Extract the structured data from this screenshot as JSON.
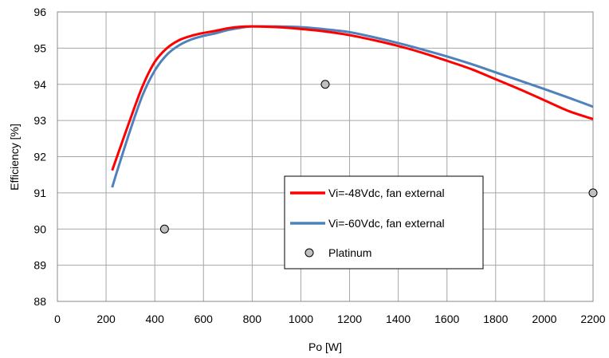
{
  "chart_data": {
    "type": "line",
    "title": "",
    "xlabel": "Po [W]",
    "ylabel": "Efficiency [%]",
    "xlim": [
      0,
      2200
    ],
    "ylim": [
      88,
      96
    ],
    "x_ticks": [
      0,
      200,
      400,
      600,
      800,
      1000,
      1200,
      1400,
      1600,
      1800,
      2000,
      2200
    ],
    "y_ticks": [
      88,
      89,
      90,
      91,
      92,
      93,
      94,
      95,
      96
    ],
    "grid": true,
    "legend_position": "lower-right",
    "series": [
      {
        "name": "Vi=-48Vdc, fan external",
        "type": "line",
        "color": "#ff0000",
        "points": [
          [
            225,
            91.62
          ],
          [
            250,
            92.1
          ],
          [
            300,
            93.05
          ],
          [
            350,
            93.95
          ],
          [
            400,
            94.62
          ],
          [
            450,
            95.0
          ],
          [
            500,
            95.22
          ],
          [
            550,
            95.34
          ],
          [
            600,
            95.42
          ],
          [
            650,
            95.48
          ],
          [
            700,
            95.55
          ],
          [
            750,
            95.59
          ],
          [
            800,
            95.6
          ],
          [
            900,
            95.58
          ],
          [
            1000,
            95.53
          ],
          [
            1100,
            95.46
          ],
          [
            1200,
            95.36
          ],
          [
            1300,
            95.22
          ],
          [
            1400,
            95.06
          ],
          [
            1500,
            94.87
          ],
          [
            1600,
            94.65
          ],
          [
            1700,
            94.42
          ],
          [
            1800,
            94.14
          ],
          [
            1900,
            93.86
          ],
          [
            2000,
            93.56
          ],
          [
            2100,
            93.26
          ],
          [
            2200,
            93.04
          ]
        ]
      },
      {
        "name": "Vi=-60Vdc, fan external",
        "type": "line",
        "color": "#4f81bd",
        "points": [
          [
            225,
            91.15
          ],
          [
            250,
            91.7
          ],
          [
            300,
            92.75
          ],
          [
            350,
            93.7
          ],
          [
            400,
            94.38
          ],
          [
            450,
            94.82
          ],
          [
            500,
            95.08
          ],
          [
            550,
            95.24
          ],
          [
            600,
            95.34
          ],
          [
            650,
            95.41
          ],
          [
            700,
            95.5
          ],
          [
            750,
            95.56
          ],
          [
            800,
            95.6
          ],
          [
            900,
            95.6
          ],
          [
            1000,
            95.58
          ],
          [
            1100,
            95.52
          ],
          [
            1200,
            95.44
          ],
          [
            1300,
            95.3
          ],
          [
            1400,
            95.14
          ],
          [
            1500,
            94.96
          ],
          [
            1600,
            94.77
          ],
          [
            1700,
            94.56
          ],
          [
            1800,
            94.33
          ],
          [
            1900,
            94.1
          ],
          [
            2000,
            93.87
          ],
          [
            2100,
            93.63
          ],
          [
            2200,
            93.38
          ]
        ]
      },
      {
        "name": "Platinum",
        "type": "scatter",
        "color": "#c0c0c0",
        "points": [
          [
            440,
            90.0
          ],
          [
            1100,
            94.0
          ],
          [
            2200,
            91.0
          ]
        ]
      }
    ]
  }
}
